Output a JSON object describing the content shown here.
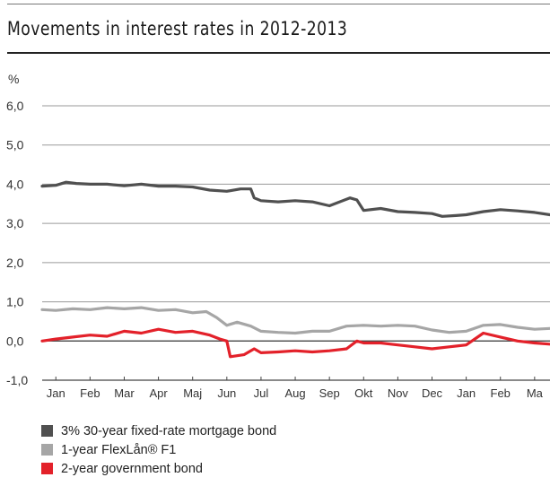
{
  "title": "Movements in interest rates in 2012-2013",
  "unit_label": "%",
  "legend": [
    {
      "label": "3% 30-year fixed-rate mortgage bond",
      "color": "#505050"
    },
    {
      "label": "1-year FlexLån® F1",
      "color": "#a6a6a6"
    },
    {
      "label": "2-year government bond",
      "color": "#e3212a"
    }
  ],
  "chart_data": {
    "type": "line",
    "title": "Movements in interest rates in 2012-2013",
    "ylabel": "%",
    "xlabel": "",
    "ylim": [
      -1.0,
      6.0
    ],
    "yticks": [
      "6,0",
      "5,0",
      "4,0",
      "3,0",
      "2,0",
      "1,0",
      "0,0",
      "-1,0"
    ],
    "ytick_values": [
      6,
      5,
      4,
      3,
      2,
      1,
      0,
      -1
    ],
    "x_tick_labels": [
      "Jan",
      "Feb",
      "Mar",
      "Apr",
      "Maj",
      "Jun",
      "Jul",
      "Aug",
      "Sep",
      "Okt",
      "Nov",
      "Dec",
      "Jan",
      "Feb",
      "Ma"
    ],
    "x_tick_month_index": [
      0,
      1,
      2,
      3,
      4,
      5,
      6,
      7,
      8,
      9,
      10,
      11,
      12,
      13,
      14
    ],
    "xlim_months": [
      -0.4,
      14.45
    ],
    "grid": "horizontal",
    "legend_position": "bottom",
    "series": [
      {
        "name": "3% 30-year fixed-rate mortgage bond",
        "color": "#505050",
        "x": [
          -0.4,
          0.0,
          0.3,
          0.6,
          1.0,
          1.5,
          2.0,
          2.5,
          3.0,
          3.5,
          4.0,
          4.5,
          5.0,
          5.4,
          5.7,
          5.8,
          6.0,
          6.5,
          7.0,
          7.5,
          8.0,
          8.6,
          8.8,
          9.0,
          9.5,
          10.0,
          10.5,
          11.0,
          11.3,
          11.7,
          12.0,
          12.5,
          13.0,
          13.5,
          14.0,
          14.45
        ],
        "y": [
          3.95,
          3.97,
          4.05,
          4.02,
          4.0,
          4.0,
          3.96,
          4.0,
          3.95,
          3.95,
          3.93,
          3.85,
          3.82,
          3.88,
          3.88,
          3.65,
          3.58,
          3.55,
          3.58,
          3.55,
          3.45,
          3.65,
          3.6,
          3.33,
          3.38,
          3.3,
          3.28,
          3.25,
          3.18,
          3.2,
          3.22,
          3.3,
          3.35,
          3.32,
          3.28,
          3.22
        ]
      },
      {
        "name": "1-year FlexLån® F1",
        "color": "#a6a6a6",
        "x": [
          -0.4,
          0.0,
          0.5,
          1.0,
          1.5,
          2.0,
          2.5,
          3.0,
          3.5,
          4.0,
          4.4,
          4.7,
          5.0,
          5.3,
          5.7,
          6.0,
          6.5,
          7.0,
          7.5,
          8.0,
          8.5,
          9.0,
          9.5,
          10.0,
          10.5,
          11.0,
          11.5,
          12.0,
          12.5,
          13.0,
          13.5,
          14.0,
          14.45
        ],
        "y": [
          0.8,
          0.78,
          0.82,
          0.8,
          0.85,
          0.82,
          0.85,
          0.78,
          0.8,
          0.72,
          0.75,
          0.6,
          0.4,
          0.48,
          0.38,
          0.25,
          0.22,
          0.2,
          0.25,
          0.25,
          0.38,
          0.4,
          0.38,
          0.4,
          0.38,
          0.28,
          0.22,
          0.25,
          0.4,
          0.42,
          0.35,
          0.3,
          0.32
        ]
      },
      {
        "name": "2-year government bond",
        "color": "#e3212a",
        "x": [
          -0.4,
          0.0,
          0.5,
          1.0,
          1.5,
          2.0,
          2.5,
          3.0,
          3.5,
          4.0,
          4.5,
          4.8,
          5.0,
          5.1,
          5.5,
          5.8,
          6.0,
          6.5,
          7.0,
          7.5,
          8.0,
          8.5,
          8.8,
          9.0,
          9.5,
          10.0,
          10.5,
          11.0,
          11.5,
          12.0,
          12.5,
          13.0,
          13.5,
          14.0,
          14.45
        ],
        "y": [
          0.0,
          0.05,
          0.1,
          0.15,
          0.12,
          0.25,
          0.2,
          0.3,
          0.22,
          0.25,
          0.15,
          0.05,
          0.0,
          -0.4,
          -0.35,
          -0.2,
          -0.3,
          -0.28,
          -0.25,
          -0.28,
          -0.25,
          -0.2,
          0.0,
          -0.05,
          -0.05,
          -0.1,
          -0.15,
          -0.2,
          -0.15,
          -0.1,
          0.2,
          0.1,
          0.0,
          -0.05,
          -0.08
        ]
      }
    ]
  }
}
